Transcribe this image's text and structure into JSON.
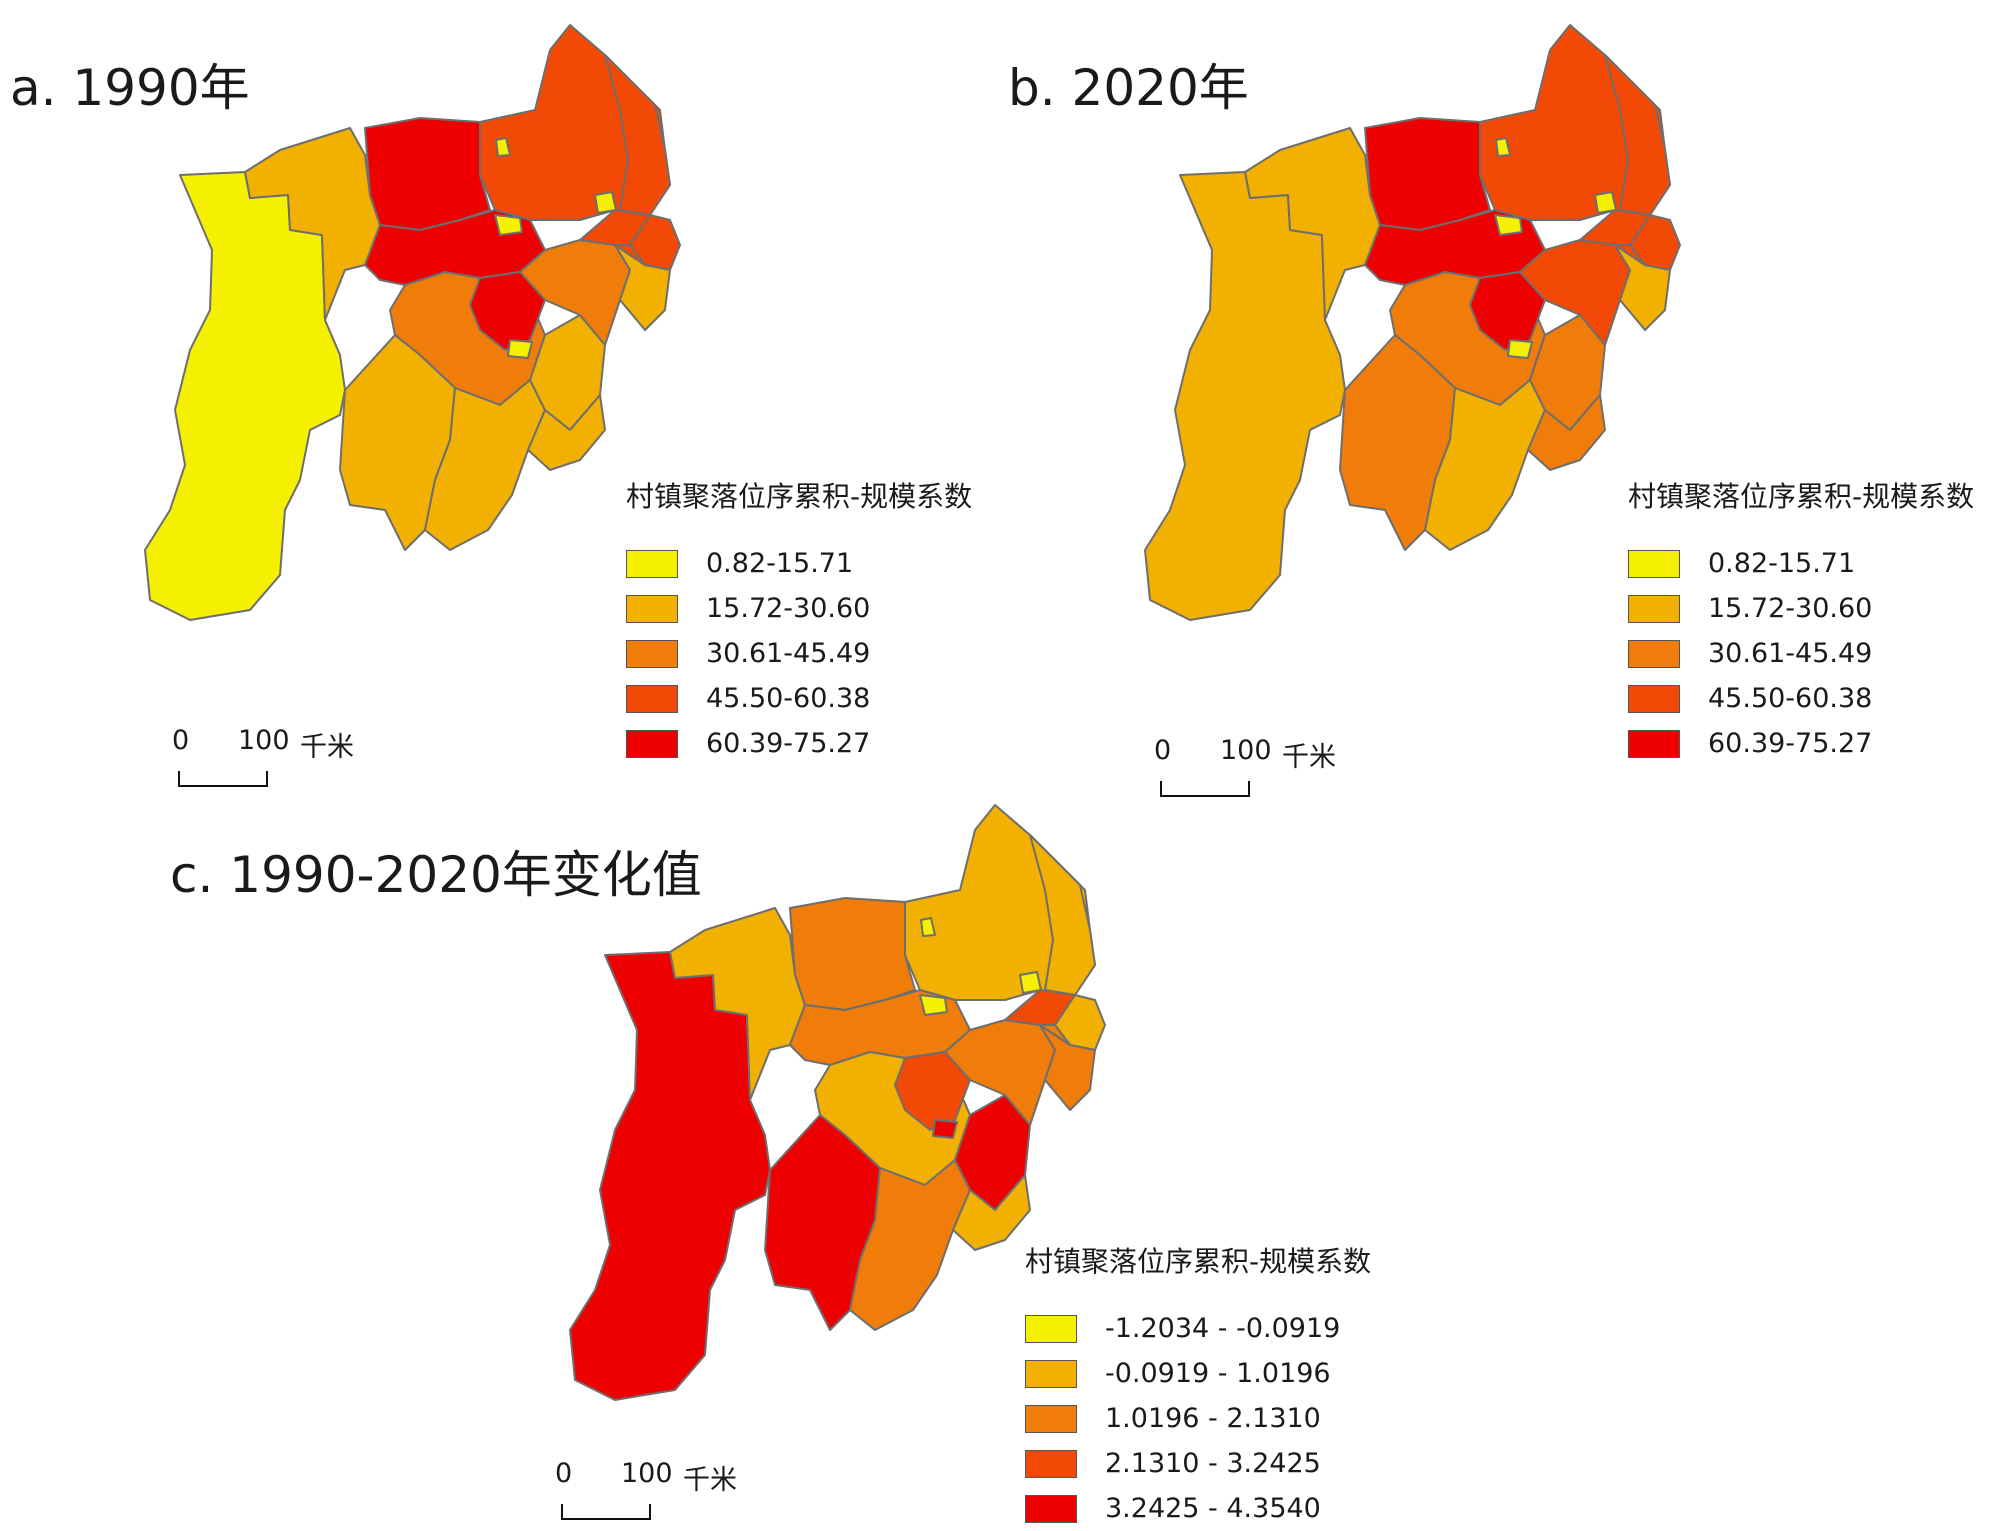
{
  "colors": {
    "yellow": "#f5f000",
    "light_orange": "#f2b100",
    "orange": "#f07d0a",
    "red_orange": "#f24a06",
    "red": "#ee0000",
    "boundary": "#6e6e6e"
  },
  "panels": [
    {
      "title": "a. 1990年",
      "legend": {
        "title": "村镇聚落位序累积-规模系数",
        "classes": [
          {
            "label": "0.82-15.71",
            "color": "#f5f000"
          },
          {
            "label": "15.72-30.60",
            "color": "#f2b100"
          },
          {
            "label": "30.61-45.49",
            "color": "#f07d0a"
          },
          {
            "label": "45.50-60.38",
            "color": "#f24a06"
          },
          {
            "label": "60.39-75.27",
            "color": "#ee0000"
          }
        ]
      },
      "scalebar": {
        "zero": "0",
        "distance": "100",
        "unit": "千米"
      }
    },
    {
      "title": "b. 2020年",
      "legend": {
        "title": "村镇聚落位序累积-规模系数",
        "classes": [
          {
            "label": "0.82-15.71",
            "color": "#f5f000"
          },
          {
            "label": "15.72-30.60",
            "color": "#f2b100"
          },
          {
            "label": "30.61-45.49",
            "color": "#f07d0a"
          },
          {
            "label": "45.50-60.38",
            "color": "#f24a06"
          },
          {
            "label": "60.39-75.27",
            "color": "#ee0000"
          }
        ]
      },
      "scalebar": {
        "zero": "0",
        "distance": "100",
        "unit": "千米"
      }
    },
    {
      "title": "c. 1990-2020年变化值",
      "legend": {
        "title": "村镇聚落位序累积-规模系数",
        "classes": [
          {
            "label": "-1.2034 - -0.0919",
            "color": "#f5f000"
          },
          {
            "label": "-0.0919 - 1.0196",
            "color": "#f2b100"
          },
          {
            "label": "1.0196 - 2.1310",
            "color": "#f07d0a"
          },
          {
            "label": "2.1310 - 3.2425",
            "color": "#f24a06"
          },
          {
            "label": "3.2425 - 4.3540",
            "color": "#ee0000"
          }
        ]
      },
      "scalebar": {
        "zero": "0",
        "distance": "100",
        "unit": "千米"
      }
    }
  ],
  "region_classes": {
    "a": [
      "yellow",
      "light_orange",
      "red",
      "red_orange",
      "red_orange",
      "red_orange",
      "red",
      "orange",
      "light_orange",
      "light_orange",
      "light_orange",
      "orange",
      "light_orange",
      "red_orange",
      "red_orange",
      "light_orange",
      "red",
      "yellow",
      "yellow",
      "yellow",
      "yellow"
    ],
    "b": [
      "light_orange",
      "light_orange",
      "red",
      "red_orange",
      "red_orange",
      "red_orange",
      "red",
      "orange",
      "orange",
      "light_orange",
      "orange",
      "red_orange",
      "light_orange",
      "red_orange",
      "red_orange",
      "orange",
      "red",
      "yellow",
      "yellow",
      "yellow",
      "yellow"
    ],
    "c": [
      "red",
      "light_orange",
      "orange",
      "light_orange",
      "light_orange",
      "light_orange",
      "orange",
      "light_orange",
      "red",
      "orange",
      "red",
      "orange",
      "orange",
      "orange",
      "red_orange",
      "light_orange",
      "red_orange",
      "yellow",
      "yellow",
      "red",
      "yellow"
    ]
  }
}
